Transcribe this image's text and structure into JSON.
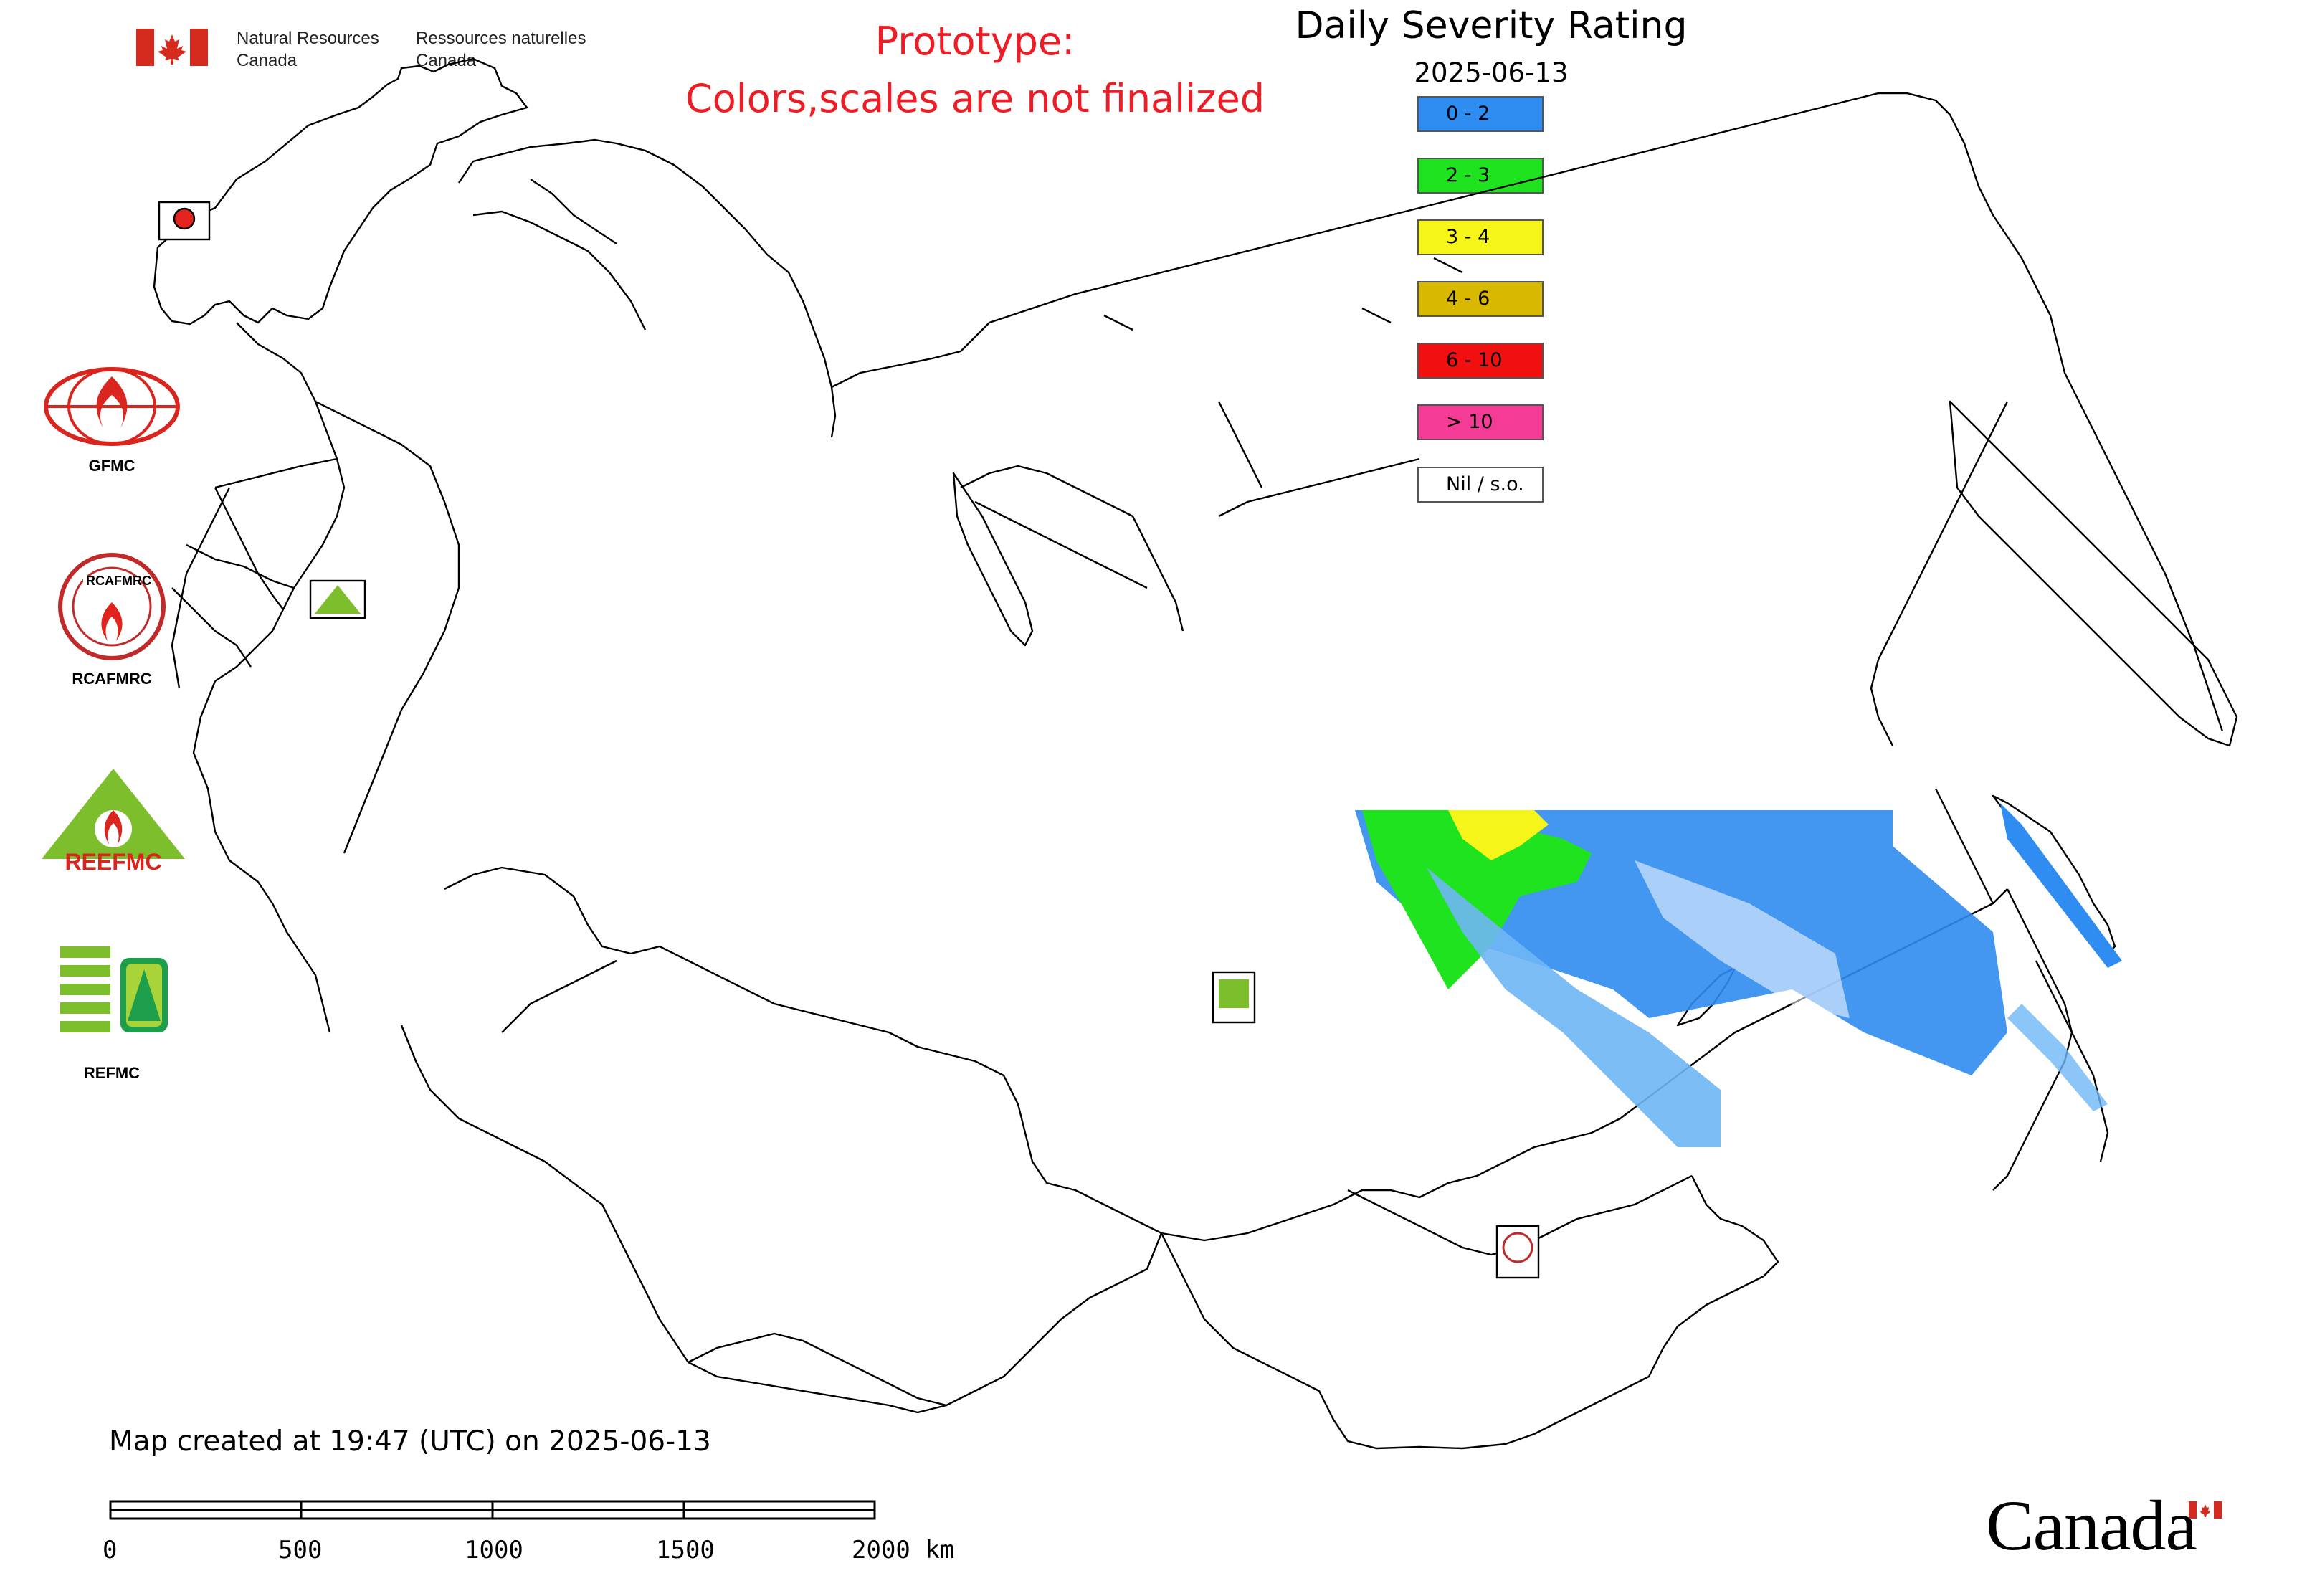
{
  "header": {
    "agency_en_line1": "Natural Resources",
    "agency_en_line2": "Canada",
    "agency_fr_line1": "Ressources naturelles",
    "agency_fr_line2": "Canada",
    "prototype_line1": "Prototype:",
    "prototype_line2": "Colors,scales are not finalized"
  },
  "legend": {
    "title": "Daily Severity Rating",
    "date": "2025-06-13",
    "items": [
      {
        "label": "0 - 2",
        "color": "#2f8cf0"
      },
      {
        "label": "2 - 3",
        "color": "#1fe31f"
      },
      {
        "label": "3 - 4",
        "color": "#f5f51a"
      },
      {
        "label": "4 - 6",
        "color": "#d9b800"
      },
      {
        "label": "6 - 10",
        "color": "#f20f0f"
      },
      {
        "label": "> 10",
        "color": "#f43b96"
      },
      {
        "label": "Nil / s.o.",
        "color": "#ffffff"
      }
    ]
  },
  "logos": {
    "gfmc": "GFMC",
    "rcafmrc": "RCAFMRC",
    "reefmc": "REEFMC",
    "refmc": "REFMC",
    "reefmc_emblem_text": "REEFMC"
  },
  "footer": {
    "map_created": "Map created at 19:47 (UTC) on 2025-06-13",
    "scale_labels": [
      "0",
      "500",
      "1000",
      "1500",
      "2000 km"
    ],
    "wordmark": "Canada"
  },
  "colors": {
    "prototype_text": "#ee1c25",
    "border_lines": "#000000",
    "low_severity_blue": "#2f8cf0",
    "light_blue_streaks": "#6fb6f5"
  }
}
